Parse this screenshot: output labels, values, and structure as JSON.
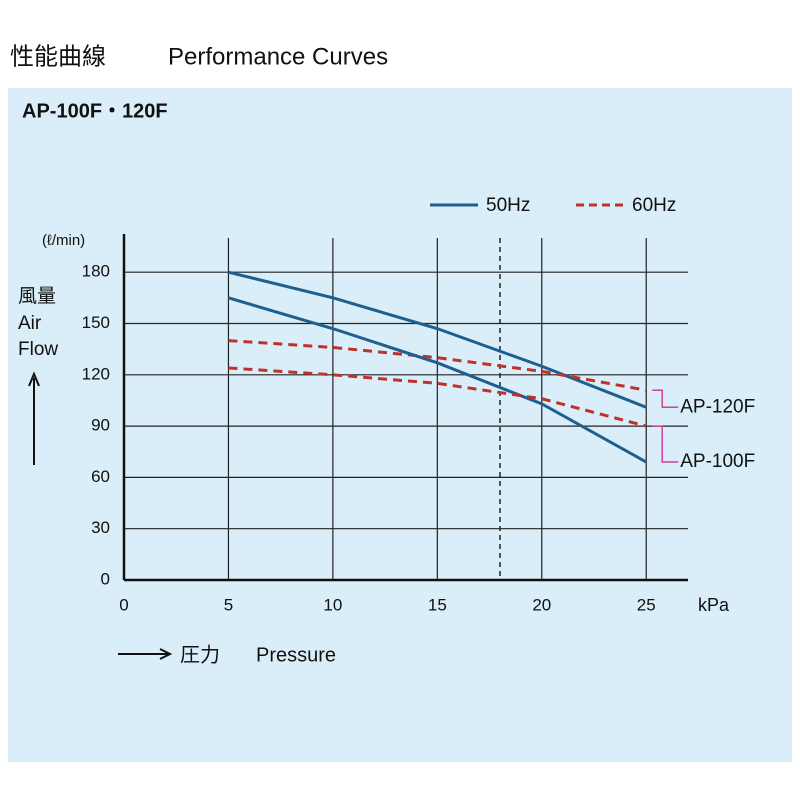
{
  "chart_data": {
    "type": "line",
    "title": "性能曲線",
    "title_en": "Performance Curves",
    "subtitle": "AP-100F・120F",
    "y_label": [
      "風量",
      "Air",
      "Flow"
    ],
    "y_unit": "(ℓ/min)",
    "x_unit": "kPa",
    "x_label": "圧力",
    "x_label_en": "Pressure",
    "x": [
      5,
      10,
      15,
      20,
      25
    ],
    "xlim": [
      0,
      27
    ],
    "xticks": [
      0,
      5,
      10,
      15,
      20,
      25
    ],
    "ylim": [
      0,
      200
    ],
    "yticks": [
      0,
      30,
      60,
      90,
      120,
      150,
      180
    ],
    "grid": true,
    "reference_x": 18,
    "legend": [
      {
        "label": "50Hz",
        "color": "#1f5f8f",
        "dashed": false
      },
      {
        "label": "60Hz",
        "color": "#c0312b",
        "dashed": true
      }
    ],
    "bracket_color": "#d0409a",
    "series": [
      {
        "name": "AP-120F",
        "values": [
          [
            180,
            165,
            147,
            125,
            101
          ],
          [
            140,
            136,
            130,
            122,
            111
          ]
        ]
      },
      {
        "name": "AP-100F",
        "values": [
          [
            165,
            147,
            127,
            103,
            69
          ],
          [
            124,
            120,
            115,
            106,
            90
          ]
        ]
      }
    ]
  }
}
